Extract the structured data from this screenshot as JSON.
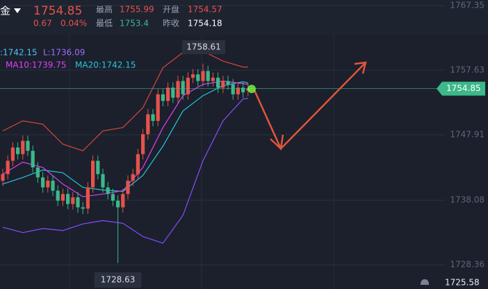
{
  "chart_data": {
    "type": "candlestick",
    "symbol": "金",
    "last_price": 1754.85,
    "change": "0.67",
    "change_pct": "0.04%",
    "stats": [
      {
        "label": "最高",
        "value": 1755.99
      },
      {
        "label": "开盘",
        "value": 1754.57
      },
      {
        "label": "最低",
        "value": 1753.4
      },
      {
        "label": "昨收",
        "value": 1754.18
      }
    ],
    "legend": [
      {
        "text": ":1742.15",
        "color": "#4fc3f7"
      },
      {
        "text": "L:1736.09",
        "color": "#9c6cff"
      },
      {
        "text": "MA10:1739.75",
        "color": "#e040fb"
      },
      {
        "text": "MA20:1742.15",
        "color": "#26c6da"
      }
    ],
    "open": [
      1741,
      1742,
      1744,
      1746,
      1745,
      1747,
      1745.5,
      1743,
      1741.5,
      1740,
      1741,
      1739.5,
      1738,
      1739,
      1737.5,
      1738.5,
      1737,
      1736.8,
      1740,
      1744,
      1742,
      1740,
      1739,
      1738,
      1737,
      1739,
      1741,
      1742,
      1745,
      1748,
      1751,
      1750,
      1754,
      1753,
      1755,
      1753.5,
      1756,
      1754,
      1756.5,
      1757,
      1756,
      1757.5,
      1756,
      1756.5,
      1755,
      1756,
      1755.5,
      1754,
      1755,
      1754.57
    ],
    "high": [
      1742.8,
      1744.8,
      1746.8,
      1746.8,
      1747.8,
      1747.8,
      1746.3,
      1743.8,
      1742.3,
      1741.8,
      1741.8,
      1740.3,
      1739.8,
      1739.8,
      1739.3,
      1739.3,
      1737.8,
      1740.8,
      1744.8,
      1744.8,
      1742.8,
      1740.8,
      1739.8,
      1738.8,
      1739.8,
      1741.8,
      1742.8,
      1745.8,
      1748.8,
      1751.8,
      1751.8,
      1754.8,
      1754.8,
      1755.8,
      1755.8,
      1756.8,
      1756.8,
      1757.3,
      1757.8,
      1757.8,
      1758.61,
      1758.3,
      1757.3,
      1757.3,
      1756.8,
      1756.8,
      1756.3,
      1755.8,
      1755.8,
      1755.65
    ],
    "low": [
      1740.2,
      1741.2,
      1743.2,
      1744.2,
      1744.2,
      1744.7,
      1742.2,
      1740.7,
      1739.2,
      1739.2,
      1738.7,
      1737.2,
      1737.2,
      1736.7,
      1736.7,
      1736.2,
      1736,
      1736,
      1739.2,
      1741.2,
      1739.2,
      1738.2,
      1737.2,
      1728.63,
      1736.2,
      1738.2,
      1740.2,
      1741.2,
      1744.2,
      1747.2,
      1749.2,
      1749.2,
      1752.2,
      1752.2,
      1752.7,
      1752.7,
      1753.2,
      1753.2,
      1755.7,
      1755.2,
      1755.2,
      1755.2,
      1755.2,
      1754.2,
      1754.2,
      1754.7,
      1753.2,
      1753.2,
      1753.5,
      1753.7
    ],
    "close": [
      1742,
      1744,
      1746,
      1745,
      1747,
      1745.5,
      1743,
      1741.5,
      1740,
      1741,
      1739.5,
      1738,
      1739,
      1737.5,
      1738.5,
      1737,
      1736.8,
      1740,
      1744,
      1742,
      1740,
      1739,
      1738,
      1737,
      1739,
      1741,
      1742,
      1745,
      1748,
      1751,
      1750,
      1754,
      1753,
      1755,
      1753.5,
      1756,
      1754,
      1756.5,
      1757,
      1756,
      1757.5,
      1756,
      1756.5,
      1755,
      1756,
      1755.5,
      1754,
      1755,
      1754.3,
      1754.85
    ],
    "up_color": "#e5534b",
    "down_color": "#3cb88a",
    "line_x": [
      0,
      4,
      8,
      12,
      16,
      20,
      24,
      28,
      32,
      36,
      40,
      44,
      48,
      49
    ],
    "lines": [
      {
        "color": "#26c6da",
        "values": [
          1740.5,
          1741.5,
          1742.6,
          1742.2,
          1740,
          1739.6,
          1739.4,
          1741.8,
          1746.2,
          1751.5,
          1753.8,
          1755.3,
          1755.9,
          1755.7
        ]
      },
      {
        "color": "#e040fb",
        "values": [
          1742,
          1743.8,
          1743,
          1740.5,
          1738.6,
          1739,
          1739.5,
          1743,
          1749,
          1753.8,
          1755.5,
          1756,
          1755.6,
          1755.5
        ]
      },
      {
        "color": "#d9473a",
        "values": [
          1748.5,
          1750,
          1749.5,
          1746.5,
          1745.5,
          1748.5,
          1749,
          1752,
          1758,
          1760.3,
          1760.5,
          1759,
          1758.1,
          1758.1
        ]
      },
      {
        "color": "#8a4dff",
        "values": [
          1734,
          1733.2,
          1733.8,
          1733.5,
          1734.5,
          1735,
          1734.6,
          1732.6,
          1731.6,
          1735.8,
          1744,
          1750,
          1753.3,
          1753.4
        ]
      }
    ],
    "high_label": "1758.61",
    "low_label": "1728.63",
    "bottom_label": "1725.58",
    "ylim": [
      1724.71,
      1768.19
    ],
    "yticks": [
      {
        "value": 1767.35,
        "label": "1767.35"
      },
      {
        "value": 1757.63,
        "label": "1757.63"
      },
      {
        "value": 1747.91,
        "label": "1747.91"
      },
      {
        "value": 1738.08,
        "label": "1738.08"
      },
      {
        "value": 1728.36,
        "label": "1728.36"
      }
    ],
    "grid": true
  }
}
